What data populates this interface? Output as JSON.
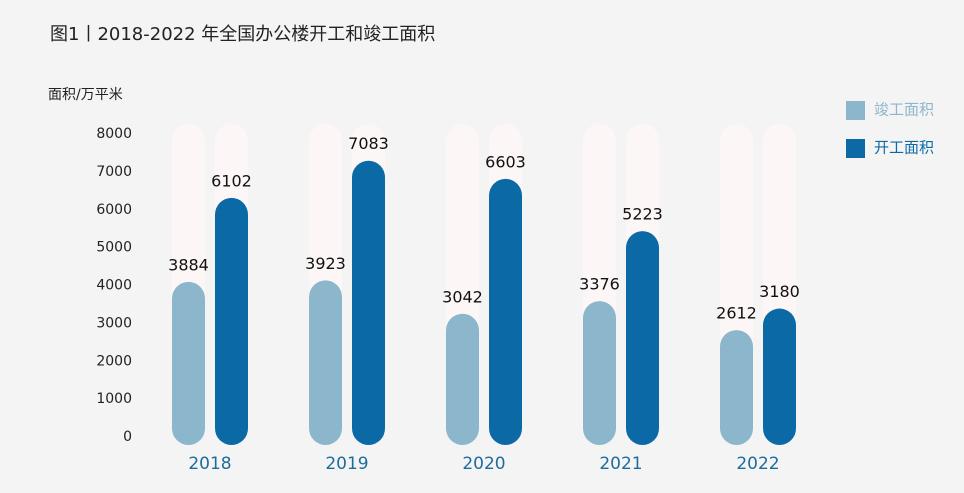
{
  "chart_data": {
    "type": "bar",
    "title": "图1丨2018-2022 年全国办公楼开工和竣工面积",
    "y_label": "面积/万平米",
    "categories": [
      "2018",
      "2019",
      "2020",
      "2021",
      "2022"
    ],
    "series": [
      {
        "name": "竣工面积",
        "color": "#8cb6cb",
        "values": [
          3884,
          3923,
          3042,
          3376,
          2612
        ]
      },
      {
        "name": "开工面积",
        "color": "#0b6aa6",
        "values": [
          6102,
          7083,
          6603,
          5223,
          3180
        ]
      }
    ],
    "ylim": [
      0,
      8000
    ],
    "yticks": [
      0,
      1000,
      2000,
      3000,
      4000,
      5000,
      6000,
      7000,
      8000
    ],
    "legend": "top-right"
  }
}
